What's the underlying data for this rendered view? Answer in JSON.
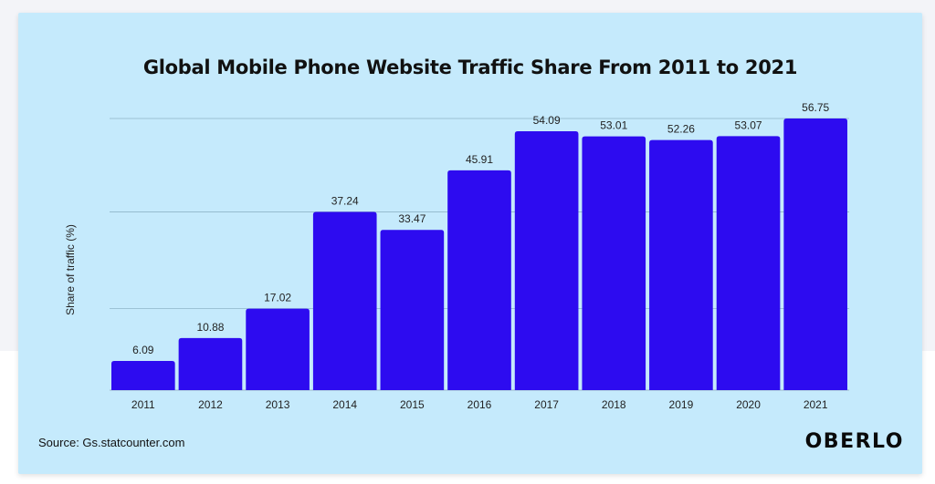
{
  "chart_data": {
    "type": "bar",
    "title": "Global Mobile Phone Website Traffic Share From 2011 to 2021",
    "xlabel": "",
    "ylabel": "Share of traffic (%)",
    "categories": [
      "2011",
      "2012",
      "2013",
      "2014",
      "2015",
      "2016",
      "2017",
      "2018",
      "2019",
      "2020",
      "2021"
    ],
    "values": [
      6.09,
      10.88,
      17.02,
      37.24,
      33.47,
      45.91,
      54.09,
      53.01,
      52.26,
      53.07,
      56.75
    ],
    "data_labels": [
      "6.09",
      "10.88",
      "17.02",
      "37.24",
      "33.47",
      "45.91",
      "54.09",
      "53.01",
      "52.26",
      "53.07",
      "56.75"
    ],
    "gridlines_at": [
      17.02,
      37.24,
      56.75
    ],
    "grid": true,
    "legend": "none",
    "bar_color": "#2d0bf0"
  },
  "footer": {
    "source": "Source: Gs.statcounter.com",
    "brand": "OBERLO"
  }
}
